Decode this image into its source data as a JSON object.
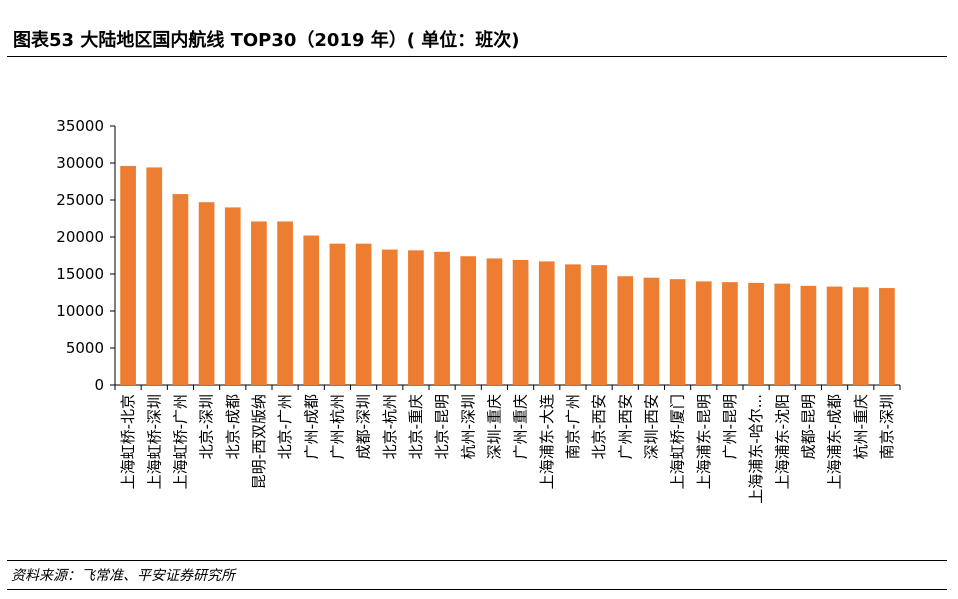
{
  "header": {
    "title": "图表53    大陆地区国内航线 TOP30（2019 年）( 单位：班次)"
  },
  "footer": {
    "source": "资料来源：飞常准、平安证券研究所"
  },
  "colors": {
    "bar": "#ED7D31",
    "axis": "#000000"
  },
  "chart_data": {
    "type": "bar",
    "title": "",
    "xlabel": "",
    "ylabel": "",
    "ylim": [
      0,
      35000
    ],
    "yticks": [
      0,
      5000,
      10000,
      15000,
      20000,
      25000,
      30000,
      35000
    ],
    "grid": false,
    "legend": "none",
    "categories": [
      "上海虹桥-北京",
      "上海虹桥-深圳",
      "上海虹桥-广州",
      "北京-深圳",
      "北京-成都",
      "昆明-西双版纳",
      "北京-广州",
      "广州-成都",
      "广州-杭州",
      "成都-深圳",
      "北京-杭州",
      "北京-重庆",
      "北京-昆明",
      "杭州-深圳",
      "深圳-重庆",
      "广州-重庆",
      "上海浦东-大连",
      "南京-广州",
      "北京-西安",
      "广州-西安",
      "深圳-西安",
      "上海虹桥-厦门",
      "上海浦东-昆明",
      "广州-昆明",
      "上海浦东-哈尔...",
      "上海浦东-沈阳",
      "成都-昆明",
      "上海浦东-成都",
      "杭州-重庆",
      "南京-深圳"
    ],
    "values": [
      29600,
      29400,
      25800,
      24700,
      24000,
      22100,
      22100,
      20200,
      19100,
      19100,
      18300,
      18200,
      18000,
      17400,
      17100,
      16900,
      16700,
      16300,
      16200,
      14700,
      14500,
      14300,
      14000,
      13900,
      13800,
      13700,
      13400,
      13300,
      13200,
      13100
    ]
  }
}
